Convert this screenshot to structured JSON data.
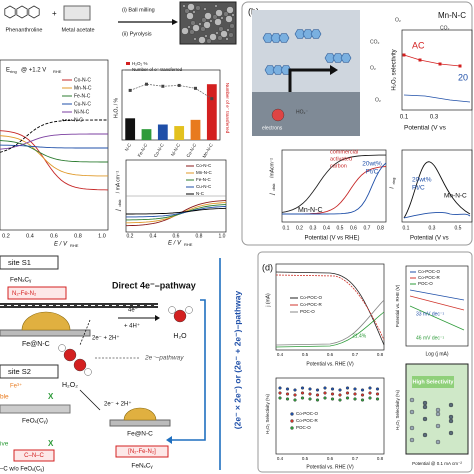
{
  "panel_a": {
    "reactant_1": "Phenanthroline",
    "plus": "+",
    "reactant_2": "Metal acetate",
    "step_1": "(i) Ball milling",
    "step_2": "(ii) Pyrolysis",
    "ring_plot": {
      "e": "E",
      "ring": "ring",
      "at": "@ +1.2 V",
      "rhe": "RHE",
      "legend": [
        "Co-N-C",
        "Mn-N-C",
        "Fe-N-C",
        "Cu-N-C",
        "Ni-N-C",
        "N-C"
      ],
      "colors": [
        "#c62828",
        "#e09a2a",
        "#2e7d32",
        "#1f4fa8",
        "#7b3fa0",
        "#000000"
      ],
      "xticks": [
        "0.2",
        "0.4",
        "0.6",
        "0.8",
        "1.0"
      ],
      "x_label": "E / V",
      "x_sub": "RHE"
    },
    "bar_chart": {
      "legend": [
        "H₂O₂ %",
        "Number of e⁻ transferred"
      ],
      "y_label": "H₂O₂ / %",
      "y2_label": "Number of e⁻ transferred",
      "categories": [
        "N-C",
        "Fe-N-C",
        "Co-N-C",
        "Ni-N-C",
        "Cu-N-C",
        "Mn-N-C"
      ],
      "values": [
        1.4,
        0.7,
        1.0,
        0.9,
        1.3,
        3.6
      ],
      "colors": [
        "#111111",
        "#2e9b3a",
        "#1f4fa8",
        "#e3c11e",
        "#e87a1e",
        "#d32020"
      ],
      "ylim": [
        0,
        4
      ],
      "electrons": [
        3.7,
        3.85,
        3.8,
        3.82,
        3.75,
        3.5
      ],
      "y2lim": [
        2.5,
        4
      ]
    },
    "disk_plot": {
      "y_label": "j",
      "y_sub": "disk",
      "y_rest": " / mA cm⁻²",
      "x_label": "E / V",
      "x_sub": "RHE",
      "xticks": [
        "0.2",
        "0.4",
        "0.6",
        "0.8",
        "1.0"
      ],
      "legend": [
        "Co-N-C",
        "Mn-N-C",
        "Fe-N-C",
        "Cu-N-C",
        "N-C"
      ],
      "colors": [
        "#8b1a1a",
        "#e09a2a",
        "#2e7d32",
        "#1f4fa8",
        "#000000"
      ]
    }
  },
  "panel_b": {
    "label": "(b)",
    "catalyst": "Mn-N-C",
    "species": [
      "CO₂",
      "O₂",
      "CO₂",
      "O₂",
      "HO₂⁻",
      "O₂"
    ],
    "electrons": "electrons",
    "selectivity_plot": {
      "ac": "AC",
      "pt": "20",
      "y_label": "H₂O₂ selectivity",
      "xticks": [
        "0.1",
        "0.3"
      ],
      "x_label": "Potential (V vs"
    },
    "disk_plot": {
      "y_label": "j",
      "y_sub": "disk",
      "y_rest": " /mAcm⁻²",
      "carbon": [
        "commercial",
        "activated",
        "carbon"
      ],
      "mn": "Mn-N-C",
      "pt": [
        "20wt%",
        "Pt/C"
      ],
      "xticks": [
        "0.1",
        "0.2",
        "0.3",
        "0.4",
        "0.5",
        "0.6",
        "0.7",
        "0.8"
      ],
      "x_label": "Potential (V vs RHE)"
    },
    "ring_plot": {
      "y_label": "i",
      "y_sub": "ring",
      "pt": [
        "20wt%",
        "Pt/C"
      ],
      "mn": "Mn-N-C",
      "xticks": [
        "0.1",
        "0.3",
        "0.5"
      ],
      "x_label": "Potential (V vs"
    }
  },
  "panel_c": {
    "site_1": "site S1",
    "fenc": "FeNₓCᵧ",
    "n2fen2": "N₂-Fe-N₂",
    "direct": "Direct 4e⁻–pathway",
    "e4": "4e⁻",
    "h4": "+ 4H⁺",
    "water": "H₂O",
    "two_e_1": "2e⁻ + 2H⁺",
    "two_e_path": "2e⁻–pathway",
    "fenc_site": "Fe@N-C",
    "h2o2": "H₂O₂",
    "site_2": "site S2",
    "fe3": "Fe³⁺",
    "ble": "ble",
    "x1": "X",
    "feox": "FeOₓ(Cᵧ)",
    "two_e_2": "2e⁻ + 2H⁺",
    "fenc_site_2": "Fe@N-C",
    "ive": "ive",
    "x2": "X",
    "cnc": "C–N–C",
    "wo": "–C w/o FeOₓ(Cᵧ)",
    "bracket": "[N₂-Fe-N₂]",
    "fenc_2": "FeNₓCᵧ",
    "stepwise": "(2e⁻ × 2e⁻) or (2e⁻ + 2e⁻)–pathway"
  },
  "panel_d": {
    "label": "(d)",
    "lsv": {
      "y_label": "j (mA)",
      "legend": [
        "Co-POC-O",
        "Co-POC-R",
        "POC-O"
      ],
      "colors": [
        "#222222",
        "#d0342c",
        "#888888"
      ],
      "xticks": [
        "0.4",
        "0.5",
        "0.6",
        "0.7",
        "0.8"
      ],
      "x_label": "Potential vs. RHE (V)",
      "note": "21.4%"
    },
    "selectivity": {
      "y_label": "H₂O₂ Selectivity (%)",
      "legend": [
        "Co-POC-O",
        "Co-POC-R",
        "POC-O"
      ],
      "colors": [
        "#1f4fa8",
        "#d0342c",
        "#2e9b3a"
      ],
      "xticks": [
        "0.4",
        "0.5",
        "0.6",
        "0.7",
        "0.8"
      ],
      "x_label": "Potential vs. RHE (V)"
    },
    "tafel": {
      "y_label": "Potential vs. RHE (V)",
      "legend": [
        "Co-POC-O",
        "Co-POC-R",
        "POC-O"
      ],
      "colors": [
        "#1f4fa8",
        "#d0342c",
        "#2e9b3a"
      ],
      "slope_1": "33 mV dec⁻¹",
      "slope_2": "46 mV dec⁻¹",
      "x_label": "Log (j mA)"
    },
    "map": {
      "note": "High Selectivity",
      "y_label": "H₂O₂ Selectivity (%)",
      "x_label": "Potential @ 0.1 mA cm⁻²"
    }
  }
}
